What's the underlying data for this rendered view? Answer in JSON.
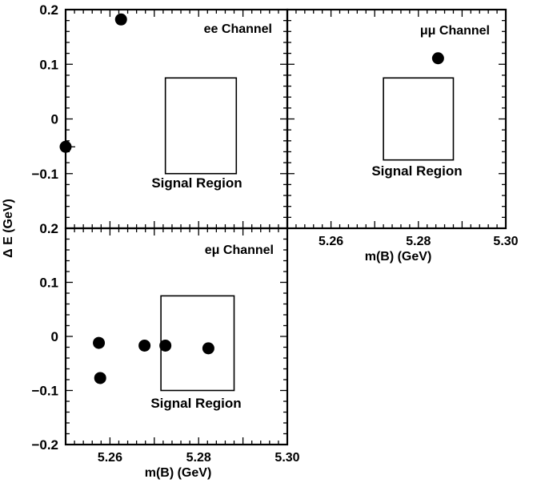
{
  "figure": {
    "ylabel": "Δ E (GeV)",
    "xlabel": "m(B) (GeV)"
  },
  "chart_data": [
    {
      "type": "scatter",
      "panel": "ee",
      "channel_label": "ee Channel",
      "region_label": "Signal Region",
      "xlim": [
        5.25,
        5.3
      ],
      "ylim": [
        -0.2,
        0.2
      ],
      "y_ticks": [
        0.2,
        0.1,
        0,
        -0.1
      ],
      "y_tick_labels": [
        "0.2",
        "0.1",
        "0",
        "−0.1"
      ],
      "x_ticks": [],
      "x_tick_labels": [],
      "xlabel": "",
      "signal_region": {
        "x": [
          5.2725,
          5.2885
        ],
        "y": [
          -0.1,
          0.075
        ]
      },
      "points": [
        {
          "x": 5.2625,
          "y": 0.182
        },
        {
          "x": 5.25,
          "y": -0.051
        }
      ]
    },
    {
      "type": "scatter",
      "panel": "mumu",
      "channel_label": "μμ Channel",
      "region_label": "Signal Region",
      "xlim": [
        5.25,
        5.3
      ],
      "ylim": [
        -0.2,
        0.2
      ],
      "y_ticks": [],
      "y_tick_labels": [],
      "x_ticks": [
        5.26,
        5.28,
        5.3
      ],
      "x_tick_labels": [
        "5.26",
        "5.28",
        "5.30"
      ],
      "xlabel": "m(B) (GeV)",
      "signal_region": {
        "x": [
          5.272,
          5.288
        ],
        "y": [
          -0.075,
          0.075
        ]
      },
      "points": [
        {
          "x": 5.2845,
          "y": 0.111
        }
      ]
    },
    {
      "type": "scatter",
      "panel": "emu",
      "channel_label": "eμ Channel",
      "region_label": "Signal Region",
      "xlim": [
        5.25,
        5.3
      ],
      "ylim": [
        -0.2,
        0.2
      ],
      "y_ticks": [
        0.2,
        0.1,
        0,
        -0.1,
        -0.2
      ],
      "y_tick_labels": [
        "0.2",
        "0.1",
        "0",
        "−0.1",
        "−0.2"
      ],
      "x_ticks": [
        5.26,
        5.28,
        5.3
      ],
      "x_tick_labels": [
        "5.26",
        "5.28",
        "5.30"
      ],
      "xlabel": "m(B) (GeV)",
      "signal_region": {
        "x": [
          5.2715,
          5.288
        ],
        "y": [
          -0.1,
          0.075
        ]
      },
      "points": [
        {
          "x": 5.2575,
          "y": -0.012
        },
        {
          "x": 5.2578,
          "y": -0.077
        },
        {
          "x": 5.2678,
          "y": -0.017
        },
        {
          "x": 5.2725,
          "y": -0.017
        },
        {
          "x": 5.2822,
          "y": -0.022
        }
      ]
    }
  ]
}
